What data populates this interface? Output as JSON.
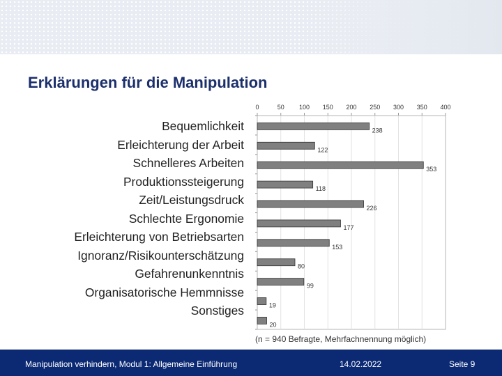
{
  "slide": {
    "title": "Erklärungen für die Manipulation",
    "note": "(n = 940 Befragte, Mehrfachnennung möglich)"
  },
  "footer": {
    "module": "Manipulation verhindern, Modul 1: Allgemeine Einführung",
    "date": "14.02.2022",
    "page": "Seite 9"
  },
  "colors": {
    "bar": "#808080",
    "title": "#1b2f6b",
    "footer_bg": "#0c2a73"
  },
  "chart_data": {
    "type": "bar",
    "orientation": "horizontal",
    "categories": [
      "Bequemlichkeit",
      "Erleichterung der Arbeit",
      "Schnelleres Arbeiten",
      "Produktionssteigerung",
      "Zeit/Leistungsdruck",
      "Schlechte Ergonomie",
      "Erleichterung von Betriebsarten",
      "Ignoranz/Risikounterschätzung",
      "Gefahrenunkenntnis",
      "Organisatorische Hemmnisse",
      "Sonstiges"
    ],
    "values": [
      238,
      122,
      353,
      118,
      226,
      177,
      153,
      80,
      99,
      19,
      20
    ],
    "ticks": [
      0,
      50,
      100,
      150,
      200,
      250,
      300,
      350,
      400
    ],
    "xlim": [
      0,
      400
    ],
    "axis_position": "top",
    "grid": true,
    "title": "",
    "xlabel": "",
    "ylabel": ""
  }
}
